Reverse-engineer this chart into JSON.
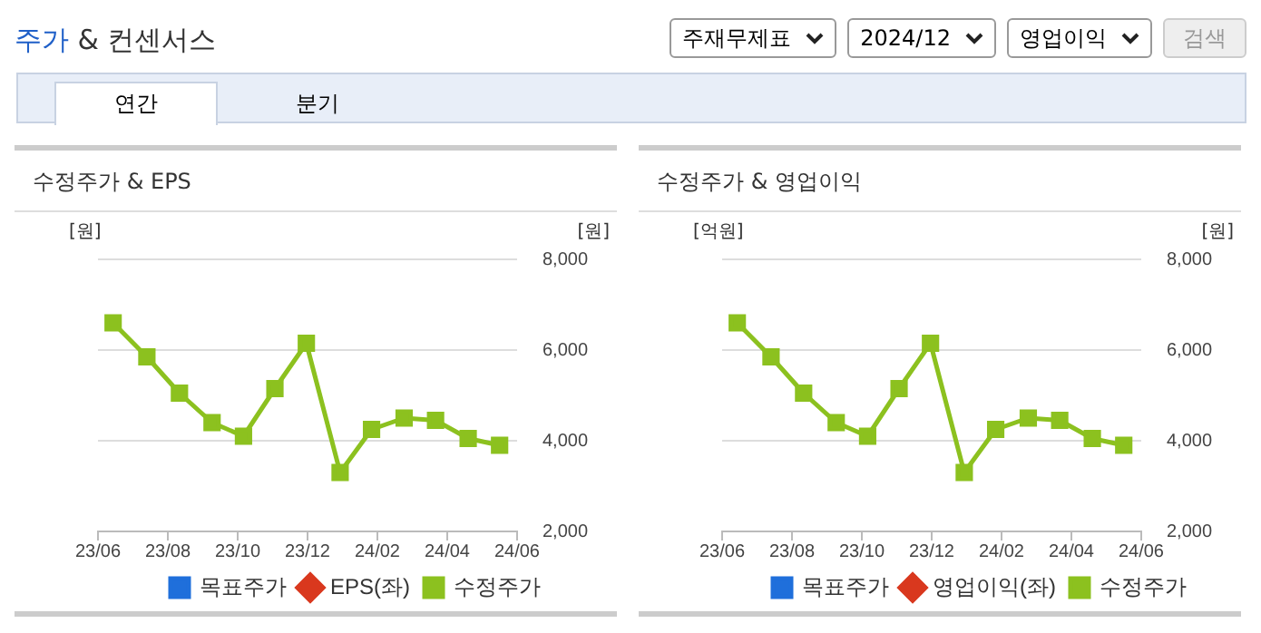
{
  "chart_data": [
    {
      "type": "other",
      "title": "주가 & 컨센서스",
      "annotations": [
        "주재무제표",
        "2024/12",
        "영업이익",
        "검색",
        "연간",
        "분기"
      ]
    },
    {
      "type": "line",
      "title": "수정주가 & EPS",
      "ylabel": "[원]",
      "y2label": "[원]",
      "x": [
        "2023-06-14",
        "2023-07-13",
        "2023-08-11",
        "2023-09-09",
        "2023-10-06",
        "2023-11-03",
        "2023-11-30",
        "2023-12-29",
        "2024-01-26",
        "2024-02-24",
        "2024-03-21",
        "2024-04-19",
        "2024-05-16"
      ],
      "xlim": [
        "2023-06",
        "2024-06"
      ],
      "xticks": [
        {
          "value": "2023-06",
          "label": "23/06"
        },
        {
          "value": "2023-08",
          "label": "23/08"
        },
        {
          "value": "2023-10",
          "label": "23/10"
        },
        {
          "value": "2023-12",
          "label": "23/12"
        },
        {
          "value": "2024-02",
          "label": "24/02"
        },
        {
          "value": "2024-04",
          "label": "24/04"
        },
        {
          "value": "2024-06",
          "label": "24/06"
        }
      ],
      "y2lim": [
        2000,
        8000
      ],
      "y2ticks": [
        {
          "value": 2000,
          "label": "2,000"
        },
        {
          "value": 4000,
          "label": "4,000"
        },
        {
          "value": 6000,
          "label": "6,000"
        },
        {
          "value": 8000,
          "label": "8,000"
        }
      ],
      "grid": "y",
      "legend": "bottom",
      "series": [
        {
          "name": "목표주가",
          "color": "#1f6fdb",
          "marker": "square",
          "values": [
            null,
            null,
            null,
            null,
            null,
            null,
            null,
            null,
            null,
            null,
            null,
            null,
            null
          ]
        },
        {
          "name": "EPS(좌)",
          "color": "#d9381e",
          "marker": "diamond",
          "values": [
            null,
            null,
            null,
            null,
            null,
            null,
            null,
            null,
            null,
            null,
            null,
            null,
            null
          ]
        },
        {
          "name": "수정주가",
          "color": "#8cc11f",
          "marker": "square",
          "axis": "y2",
          "values": [
            6600,
            5850,
            5050,
            4400,
            4100,
            5150,
            6150,
            3300,
            4250,
            4500,
            4450,
            4050,
            3900
          ]
        }
      ]
    },
    {
      "type": "line",
      "title": "수정주가 & 영업이익",
      "ylabel": "[억원]",
      "y2label": "[원]",
      "x": [
        "2023-06-14",
        "2023-07-13",
        "2023-08-11",
        "2023-09-09",
        "2023-10-06",
        "2023-11-03",
        "2023-11-30",
        "2023-12-29",
        "2024-01-26",
        "2024-02-24",
        "2024-03-21",
        "2024-04-19",
        "2024-05-16"
      ],
      "xlim": [
        "2023-06",
        "2024-06"
      ],
      "xticks": [
        {
          "value": "2023-06",
          "label": "23/06"
        },
        {
          "value": "2023-08",
          "label": "23/08"
        },
        {
          "value": "2023-10",
          "label": "23/10"
        },
        {
          "value": "2023-12",
          "label": "23/12"
        },
        {
          "value": "2024-02",
          "label": "24/02"
        },
        {
          "value": "2024-04",
          "label": "24/04"
        },
        {
          "value": "2024-06",
          "label": "24/06"
        }
      ],
      "y2lim": [
        2000,
        8000
      ],
      "y2ticks": [
        {
          "value": 2000,
          "label": "2,000"
        },
        {
          "value": 4000,
          "label": "4,000"
        },
        {
          "value": 6000,
          "label": "6,000"
        },
        {
          "value": 8000,
          "label": "8,000"
        }
      ],
      "grid": "y",
      "legend": "bottom",
      "series": [
        {
          "name": "목표주가",
          "color": "#1f6fdb",
          "marker": "square",
          "values": [
            null,
            null,
            null,
            null,
            null,
            null,
            null,
            null,
            null,
            null,
            null,
            null,
            null
          ]
        },
        {
          "name": "영업이익(좌)",
          "color": "#d9381e",
          "marker": "diamond",
          "values": [
            null,
            null,
            null,
            null,
            null,
            null,
            null,
            null,
            null,
            null,
            null,
            null,
            null
          ]
        },
        {
          "name": "수정주가",
          "color": "#8cc11f",
          "marker": "square",
          "axis": "y2",
          "values": [
            6600,
            5850,
            5050,
            4400,
            4100,
            5150,
            6150,
            3300,
            4250,
            4500,
            4450,
            4050,
            3900
          ]
        }
      ]
    }
  ]
}
